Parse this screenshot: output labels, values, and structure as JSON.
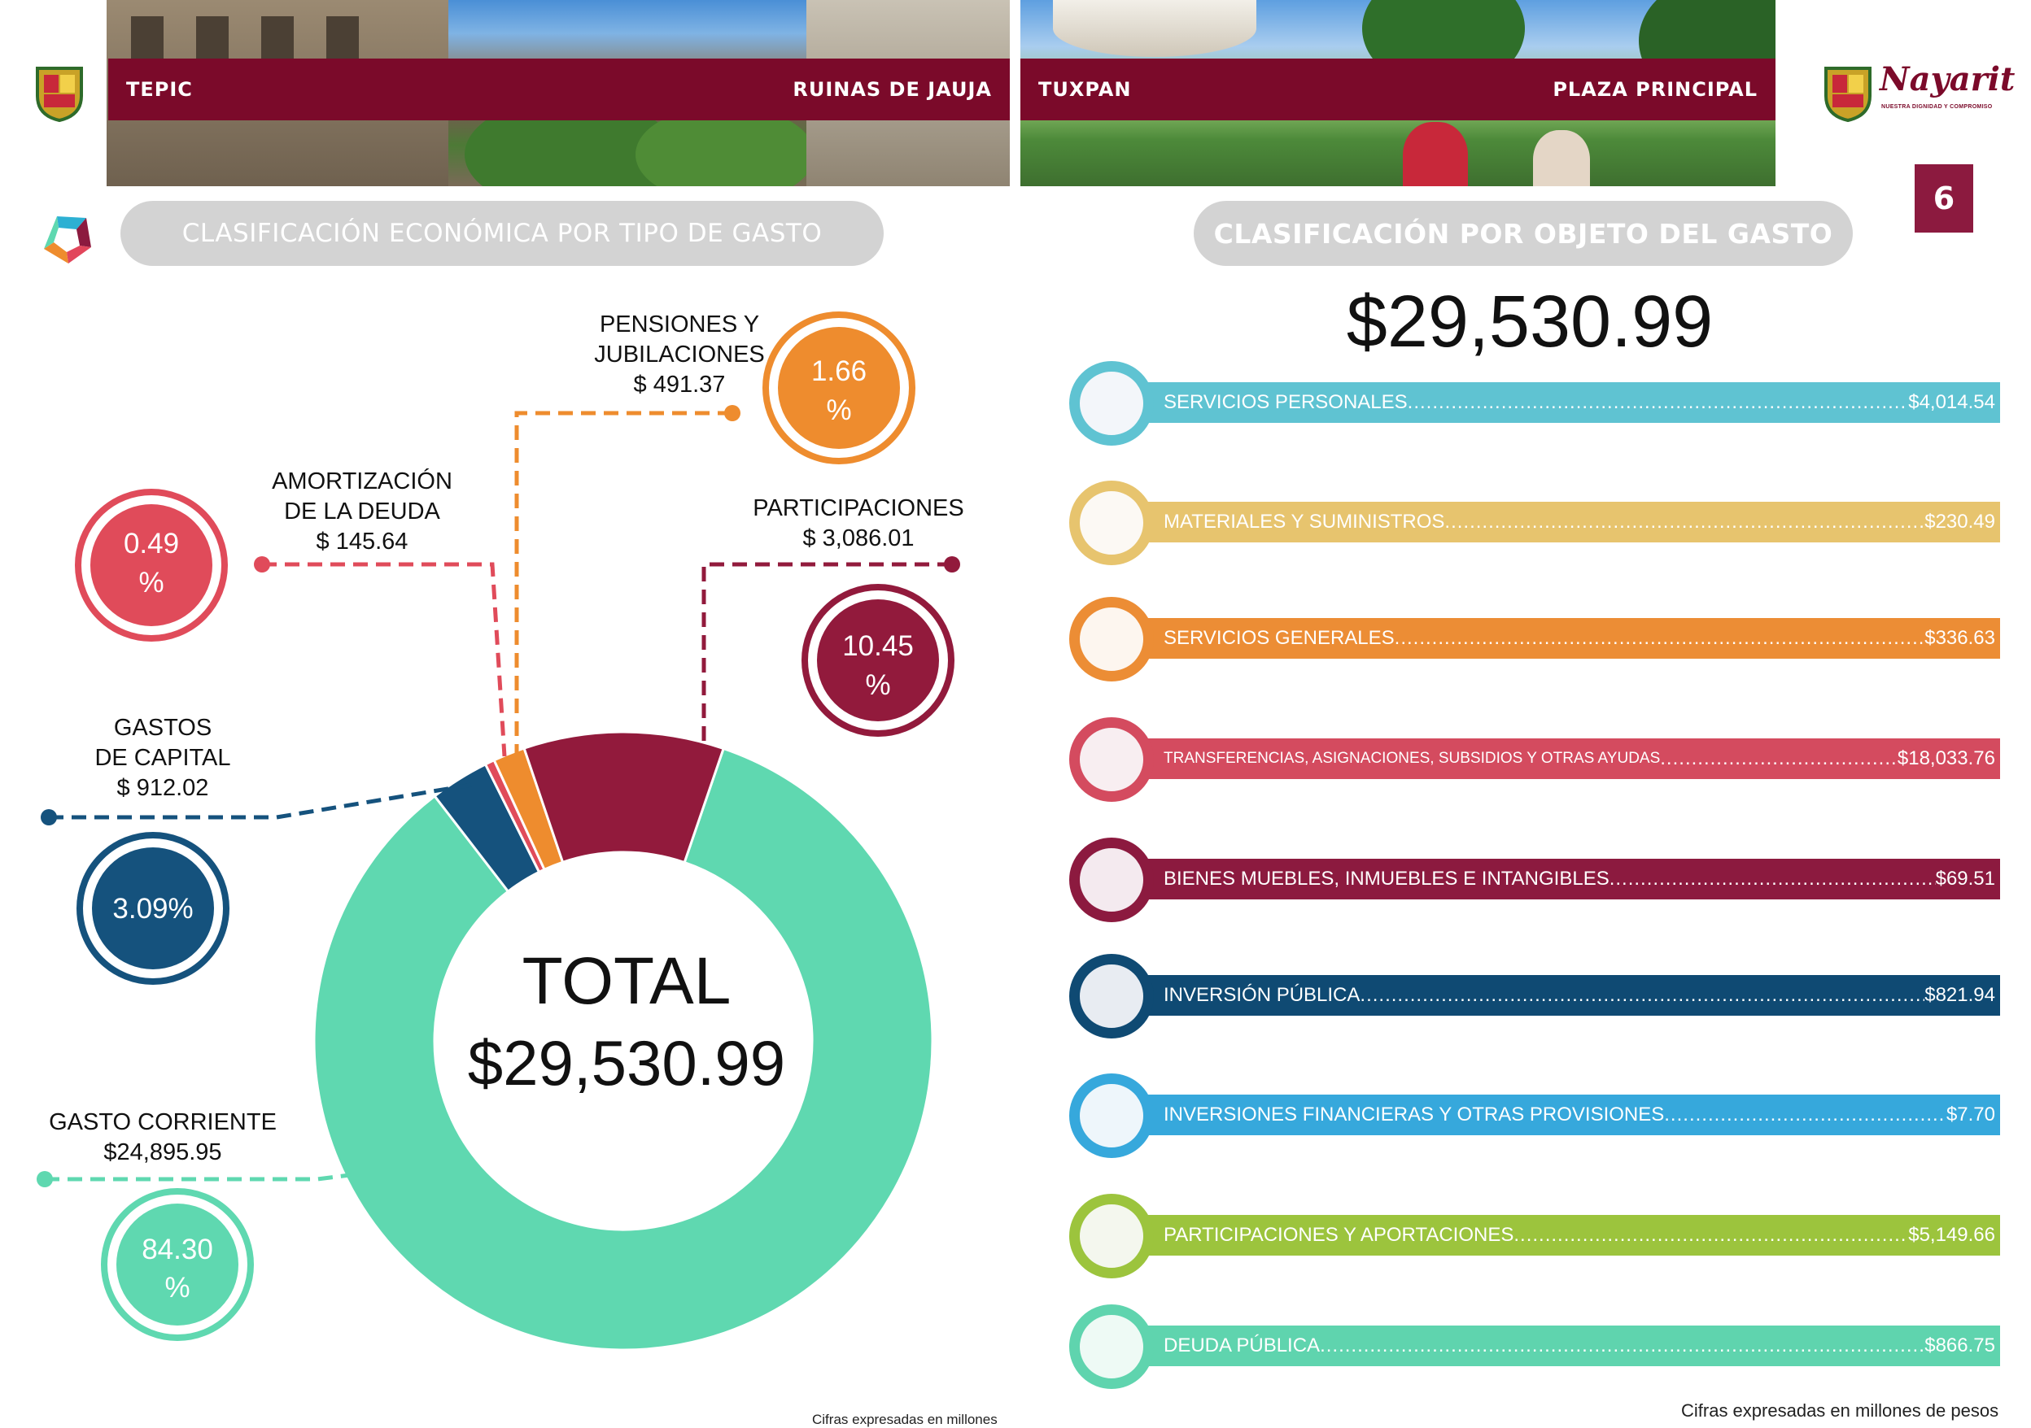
{
  "header": {
    "left_city": "TEPIC",
    "left_place": "RUINAS DE JAUJA",
    "right_city": "TUXPAN",
    "right_place": "PLAZA PRINCIPAL",
    "brand": "Nayarit",
    "brand_tagline": "NUESTRA DIGNIDAD Y COMPROMISO",
    "page_number": "6"
  },
  "left_section": {
    "title": "CLASIFICACIÓN ECONÓMICA POR TIPO DE GASTO",
    "total_word": "TOTAL",
    "total_value": "$29,530.99",
    "footnote": "Cifras expresadas en millones"
  },
  "right_section": {
    "title": "CLASIFICACIÓN POR OBJETO DEL GASTO",
    "total_value": "$29,530.99",
    "footnote": "Cifras expresadas en millones de pesos",
    "items": [
      {
        "label": "SERVICIOS PERSONALES",
        "amount": "$4,014.54",
        "color": "#5fc3d2"
      },
      {
        "label": "MATERIALES Y SUMINISTROS",
        "amount": "$230.49",
        "color": "#e7c46e"
      },
      {
        "label": "SERVICIOS GENERALES",
        "amount": "$336.63",
        "color": "#ec8d35"
      },
      {
        "label": "TRANSFERENCIAS, ASIGNACIONES, SUBSIDIOS Y OTRAS AYUDAS",
        "amount": "$18,033.76",
        "color": "#d44b5f"
      },
      {
        "label": "BIENES MUEBLES, INMUEBLES E INTANGIBLES",
        "amount": "$69.51",
        "color": "#8c1a3f"
      },
      {
        "label": "INVERSIÓN PÚBLICA",
        "amount": "$821.94",
        "color": "#0f4a73"
      },
      {
        "label": "INVERSIONES FINANCIERAS Y OTRAS PROVISIONES",
        "amount": "$7.70",
        "color": "#36a8dc"
      },
      {
        "label": "PARTICIPACIONES Y APORTACIONES",
        "amount": "$5,149.66",
        "color": "#9cc43d"
      },
      {
        "label": "DEUDA PÚBLICA",
        "amount": "$866.75",
        "color": "#5fd4ae"
      }
    ]
  },
  "chart_data": {
    "type": "pie",
    "donut": true,
    "total": 29530.99,
    "center_text": [
      "TOTAL",
      "$29,530.99"
    ],
    "slices": [
      {
        "name_lines": [
          "GASTO CORRIENTE"
        ],
        "amount_label": "$24,895.95",
        "value": 24895.95,
        "percent_lines": [
          "84.30",
          "%"
        ],
        "color": "#5fd8b0"
      },
      {
        "name_lines": [
          "GASTOS",
          "DE CAPITAL"
        ],
        "amount_label": "$ 912.02",
        "value": 912.02,
        "percent_lines": [
          "3.09%"
        ],
        "color": "#15527d"
      },
      {
        "name_lines": [
          "AMORTIZACIÓN",
          "DE LA DEUDA"
        ],
        "amount_label": "$ 145.64",
        "value": 145.64,
        "percent_lines": [
          "0.49",
          "%"
        ],
        "color": "#e04b5a"
      },
      {
        "name_lines": [
          "PENSIONES Y",
          "JUBILACIONES"
        ],
        "amount_label": "$ 491.37",
        "value": 491.37,
        "percent_lines": [
          "1.66",
          "%"
        ],
        "color": "#ee8c2e"
      },
      {
        "name_lines": [
          "PARTICIPACIONES"
        ],
        "amount_label": "$ 3,086.01",
        "value": 3086.01,
        "percent_lines": [
          "10.45",
          "%"
        ],
        "color": "#921a3c"
      }
    ]
  }
}
